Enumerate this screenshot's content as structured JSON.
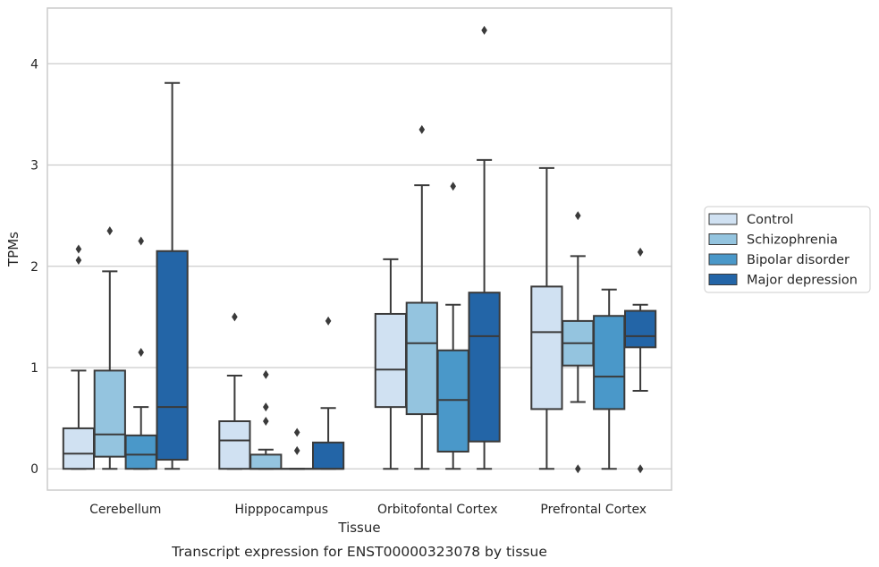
{
  "caption": "Transcript expression for ENST00000323078 by tissue",
  "chart_data": {
    "type": "box",
    "title": "",
    "xlabel": "Tissue",
    "ylabel": "TPMs",
    "ylim": [
      -0.21,
      4.55
    ],
    "yticks": [
      0,
      1,
      2,
      3,
      4
    ],
    "grid": "y",
    "legend_position": "right",
    "categories": [
      "Cerebellum",
      "Hipppocampus",
      "Orbitofontal Cortex",
      "Prefrontal Cortex"
    ],
    "series": [
      {
        "name": "Control",
        "color": "#d0e1f2",
        "boxes": [
          {
            "whislo": 0,
            "q1": 0,
            "med": 0.15,
            "q3": 0.4,
            "whishi": 0.97,
            "fliers": [
              2.06,
              2.17
            ]
          },
          {
            "whislo": 0,
            "q1": 0,
            "med": 0.28,
            "q3": 0.47,
            "whishi": 0.92,
            "fliers": [
              1.5
            ]
          },
          {
            "whislo": 0,
            "q1": 0.61,
            "med": 0.98,
            "q3": 1.53,
            "whishi": 2.07,
            "fliers": []
          },
          {
            "whislo": 0,
            "q1": 0.59,
            "med": 1.35,
            "q3": 1.8,
            "whishi": 2.97,
            "fliers": []
          }
        ]
      },
      {
        "name": "Schizophrenia",
        "color": "#94c4df",
        "boxes": [
          {
            "whislo": 0,
            "q1": 0.12,
            "med": 0.34,
            "q3": 0.97,
            "whishi": 1.95,
            "fliers": [
              2.35
            ]
          },
          {
            "whislo": 0,
            "q1": 0,
            "med": 0,
            "q3": 0.14,
            "whishi": 0.19,
            "fliers": [
              0.47,
              0.61,
              0.93
            ]
          },
          {
            "whislo": 0,
            "q1": 0.54,
            "med": 1.24,
            "q3": 1.64,
            "whishi": 2.8,
            "fliers": [
              3.35
            ]
          },
          {
            "whislo": 0.66,
            "q1": 1.02,
            "med": 1.24,
            "q3": 1.46,
            "whishi": 2.1,
            "fliers": [
              0,
              2.5
            ]
          }
        ]
      },
      {
        "name": "Bipolar disorder",
        "color": "#4a98c9",
        "boxes": [
          {
            "whislo": 0,
            "q1": 0,
            "med": 0.14,
            "q3": 0.33,
            "whishi": 0.61,
            "fliers": [
              1.15,
              2.25
            ]
          },
          {
            "whislo": 0,
            "q1": 0,
            "med": 0,
            "q3": 0,
            "whishi": 0,
            "fliers": [
              0.18,
              0.36
            ]
          },
          {
            "whislo": 0,
            "q1": 0.17,
            "med": 0.68,
            "q3": 1.17,
            "whishi": 1.62,
            "fliers": [
              2.79
            ]
          },
          {
            "whislo": 0,
            "q1": 0.59,
            "med": 0.91,
            "q3": 1.51,
            "whishi": 1.77,
            "fliers": []
          }
        ]
      },
      {
        "name": "Major depression",
        "color": "#2365a7",
        "boxes": [
          {
            "whislo": 0,
            "q1": 0.09,
            "med": 0.61,
            "q3": 2.15,
            "whishi": 3.81,
            "fliers": []
          },
          {
            "whislo": 0,
            "q1": 0,
            "med": 0,
            "q3": 0.26,
            "whishi": 0.6,
            "fliers": [
              1.46
            ]
          },
          {
            "whislo": 0,
            "q1": 0.27,
            "med": 1.31,
            "q3": 1.74,
            "whishi": 3.05,
            "fliers": [
              4.33
            ]
          },
          {
            "whislo": 0.77,
            "q1": 1.2,
            "med": 1.31,
            "q3": 1.56,
            "whishi": 1.62,
            "fliers": [
              0,
              2.14
            ]
          }
        ]
      }
    ]
  }
}
